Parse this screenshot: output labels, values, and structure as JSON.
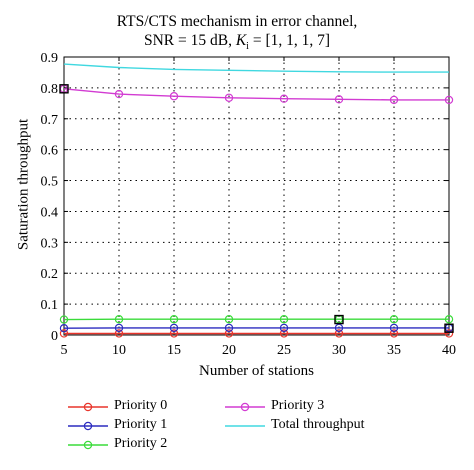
{
  "chart_data": {
    "type": "line",
    "title_line1": "RTS/CTS mechanism in error channel,",
    "title_line2_prefix": "SNR = 15 dB, ",
    "title_line2_var": "K",
    "title_line2_sub": "i",
    "title_line2_suffix": " = [1, 1, 1, 7]",
    "xlabel": "Number of stations",
    "ylabel": "Saturation throughput",
    "x": [
      5,
      10,
      15,
      20,
      25,
      30,
      35,
      40
    ],
    "xlim": [
      5,
      40
    ],
    "ylim": [
      0,
      0.9
    ],
    "xticks": [
      "5",
      "10",
      "15",
      "20",
      "25",
      "30",
      "35",
      "40"
    ],
    "yticks": [
      "0",
      "0.1",
      "0.2",
      "0.3",
      "0.4",
      "0.5",
      "0.6",
      "0.7",
      "0.8",
      "0.9"
    ],
    "grid": true,
    "legend_placement": "bottom",
    "series": [
      {
        "name": "Priority 0",
        "color": "#e8352b",
        "marker": "circle",
        "values": [
          0.005,
          0.005,
          0.005,
          0.005,
          0.005,
          0.005,
          0.005,
          0.005
        ]
      },
      {
        "name": "Priority 1",
        "color": "#2b2bbf",
        "marker": "circle",
        "values": [
          0.022,
          0.023,
          0.023,
          0.023,
          0.023,
          0.023,
          0.023,
          0.023
        ]
      },
      {
        "name": "Priority 2",
        "color": "#3adb3a",
        "marker": "circle",
        "values": [
          0.05,
          0.051,
          0.051,
          0.051,
          0.051,
          0.051,
          0.051,
          0.051
        ]
      },
      {
        "name": "Priority 3",
        "color": "#d23bd2",
        "marker": "circle",
        "values": [
          0.797,
          0.78,
          0.773,
          0.768,
          0.765,
          0.763,
          0.761,
          0.761
        ]
      },
      {
        "name": "Total throughput",
        "color": "#40d8e0",
        "marker": "none",
        "values": [
          0.877,
          0.866,
          0.86,
          0.857,
          0.854,
          0.852,
          0.851,
          0.851
        ]
      }
    ],
    "highlight_points": [
      {
        "x": 5,
        "y": 0.797
      },
      {
        "x": 30,
        "y": 0.05
      },
      {
        "x": 40,
        "y": 0.022
      }
    ]
  }
}
